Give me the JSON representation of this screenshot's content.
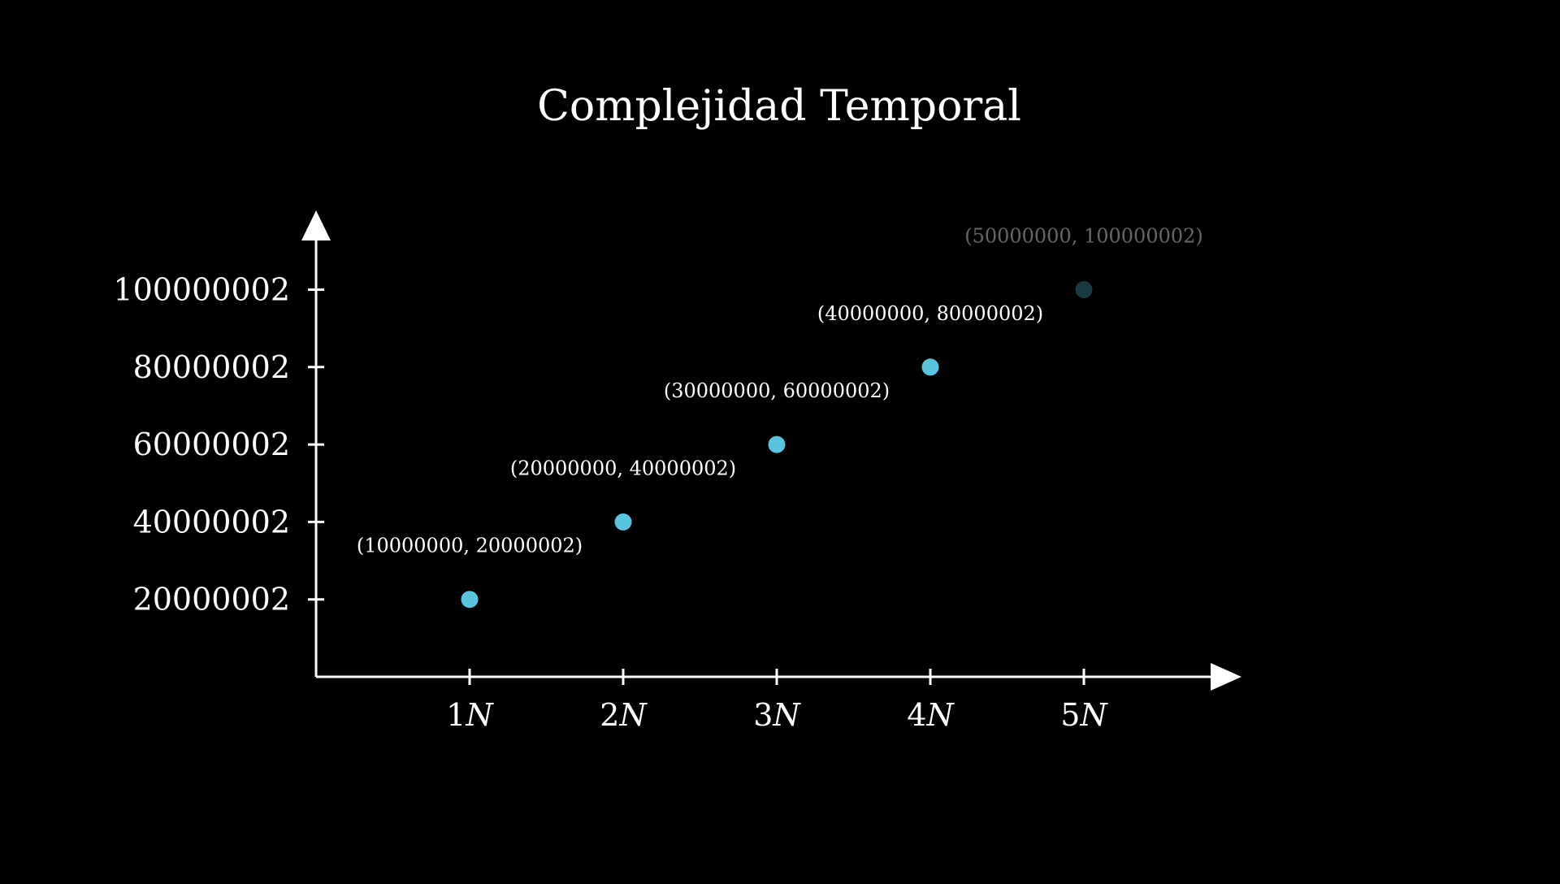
{
  "chart_data": {
    "type": "scatter",
    "title": "Complejidad Temporal",
    "xlabel": "",
    "ylabel": "",
    "x_tick_labels": [
      "1N",
      "2N",
      "3N",
      "4N",
      "5N"
    ],
    "x_tick_values": [
      1,
      2,
      3,
      4,
      5
    ],
    "y_tick_labels": [
      "20000002",
      "40000002",
      "60000002",
      "80000002",
      "100000002"
    ],
    "y_tick_values": [
      20000002,
      40000002,
      60000002,
      80000002,
      100000002
    ],
    "xlim": [
      0,
      5.8
    ],
    "ylim": [
      0,
      112000002
    ],
    "grid": false,
    "legend": "none",
    "series": [
      {
        "color": "#58c4dd",
        "points": [
          {
            "x": 1,
            "y": 20000002,
            "label": "(10000000, 20000002)",
            "faded": false
          },
          {
            "x": 2,
            "y": 40000002,
            "label": "(20000000, 40000002)",
            "faded": false
          },
          {
            "x": 3,
            "y": 60000002,
            "label": "(30000000, 60000002)",
            "faded": false
          },
          {
            "x": 4,
            "y": 80000002,
            "label": "(40000000, 80000002)",
            "faded": false
          },
          {
            "x": 5,
            "y": 100000002,
            "label": "(50000000, 100000002)",
            "faded": true
          }
        ]
      }
    ],
    "colors": {
      "background": "#000000",
      "axis": "#ffffff",
      "point": "#58c4dd"
    }
  }
}
